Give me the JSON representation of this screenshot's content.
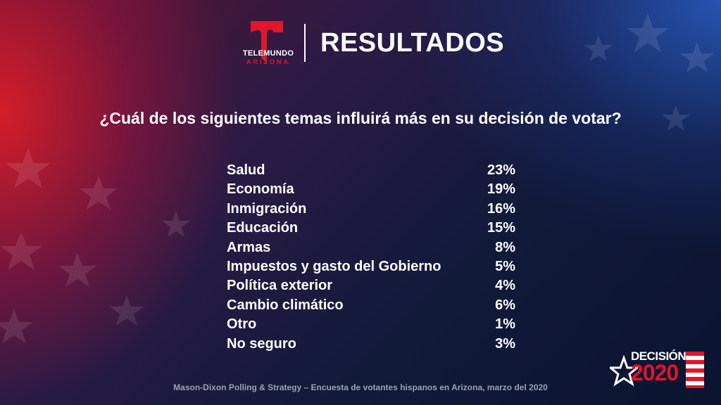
{
  "header": {
    "logo_word": "TELEMUNDO",
    "logo_sub": "ARIZONA",
    "title": "RESULTADOS"
  },
  "question": "¿Cuál de los siguientes temas influirá más en su decisión de votar?",
  "chart_data": {
    "type": "table",
    "title": "¿Cuál de los siguientes temas influirá más en su decisión de votar?",
    "categories": [
      "Salud",
      "Economía",
      "Inmigración",
      "Educación",
      "Armas",
      "Impuestos y gasto del Gobierno",
      "Política exterior",
      "Cambio climático",
      "Otro",
      "No seguro"
    ],
    "values": [
      23,
      19,
      16,
      15,
      8,
      5,
      4,
      6,
      1,
      3
    ],
    "labels": [
      "23%",
      "19%",
      "16%",
      "15%",
      "8%",
      "5%",
      "4%",
      "6%",
      "1%",
      "3%"
    ]
  },
  "source": "Mason-Dixon  Polling & Strategy – Encuesta de votantes hispanos en Arizona, marzo del 2020",
  "badge": {
    "top": "DECISIÓN",
    "year": "2020"
  },
  "colors": {
    "brand_red": "#e0162b",
    "text": "#ffffff",
    "source_text": "#9aa0b2"
  }
}
